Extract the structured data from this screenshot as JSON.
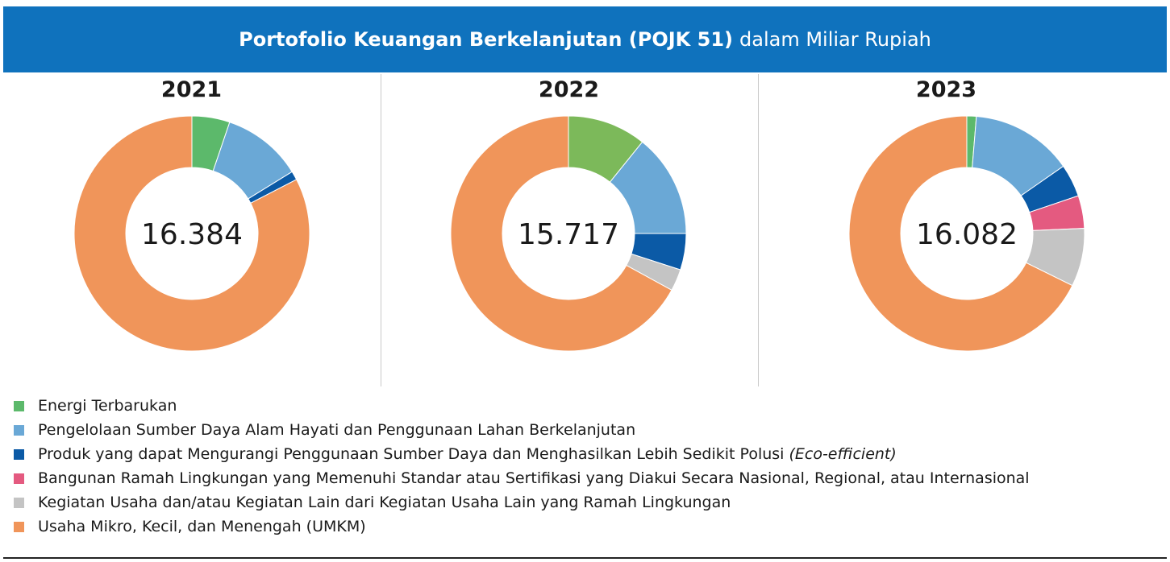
{
  "header": {
    "title_bold": "Portofolio Keuangan Berkelanjutan (POJK 51)",
    "title_normal": "dalam Miliar Rupiah",
    "background_color": "#0f72bd"
  },
  "legend": [
    {
      "label": "Energi Terbarukan",
      "color": "#5cb96b"
    },
    {
      "label": "Pengelolaan Sumber Daya Alam Hayati dan Penggunaan Lahan Berkelanjutan",
      "color": "#6aa8d6"
    },
    {
      "label": "Produk yang dapat Mengurangi Penggunaan Sumber Daya dan Menghasilkan Lebih Sedikit Polusi",
      "label_italic": "(Eco-efficient)",
      "color": "#0b5aa6"
    },
    {
      "label": "Bangunan Ramah Lingkungan yang Memenuhi Standar atau Sertifikasi yang Diakui Secara Nasional, Regional, atau Internasional",
      "color": "#e45a80"
    },
    {
      "label": "Kegiatan Usaha dan/atau Kegiatan Lain dari Kegiatan Usaha Lain yang Ramah Lingkungan",
      "color": "#c4c4c4"
    },
    {
      "label": "Usaha Mikro, Kecil, dan Menengah (UMKM)",
      "color": "#f0955a"
    }
  ],
  "chart_data": [
    {
      "type": "pie",
      "title": "2021",
      "center_label": "16.384",
      "categories": [
        "Energi Terbarukan",
        "Pengelolaan Sumber Daya Alam Hayati dan Penggunaan Lahan Berkelanjutan",
        "Produk yang dapat Mengurangi Penggunaan Sumber Daya dan Menghasilkan Lebih Sedikit Polusi (Eco-efficient)",
        "Bangunan Ramah Lingkungan yang Memenuhi Standar atau Sertifikasi yang Diakui Secara Nasional, Regional, atau Internasional",
        "Kegiatan Usaha dan/atau Kegiatan Lain dari Kegiatan Usaha Lain yang Ramah Lingkungan",
        "Usaha Mikro, Kecil, dan Menengah (UMKM)"
      ],
      "values": [
        5.2,
        11.0,
        1.2,
        0,
        0,
        82.6
      ],
      "colors": [
        "#5cb96b",
        "#6aa8d6",
        "#0b5aa6",
        "#e45a80",
        "#c4c4c4",
        "#f0955a"
      ]
    },
    {
      "type": "pie",
      "title": "2022",
      "center_label": "15.717",
      "categories": [
        "Energi Terbarukan",
        "Pengelolaan Sumber Daya Alam Hayati dan Penggunaan Lahan Berkelanjutan",
        "Produk yang dapat Mengurangi Penggunaan Sumber Daya dan Menghasilkan Lebih Sedikit Polusi (Eco-efficient)",
        "Bangunan Ramah Lingkungan yang Memenuhi Standar atau Sertifikasi yang Diakui Secara Nasional, Regional, atau Internasional",
        "Kegiatan Usaha dan/atau Kegiatan Lain dari Kegiatan Usaha Lain yang Ramah Lingkungan",
        "Usaha Mikro, Kecil, dan Menengah (UMKM)"
      ],
      "values": [
        10.8,
        14.2,
        5.0,
        0,
        3.0,
        67.0
      ],
      "colors": [
        "#7cb95a",
        "#6aa8d6",
        "#0b5aa6",
        "#e45a80",
        "#c4c4c4",
        "#f0955a"
      ]
    },
    {
      "type": "pie",
      "title": "2023",
      "center_label": "16.082",
      "categories": [
        "Energi Terbarukan",
        "Pengelolaan Sumber Daya Alam Hayati dan Penggunaan Lahan Berkelanjutan",
        "Produk yang dapat Mengurangi Penggunaan Sumber Daya dan Menghasilkan Lebih Sedikit Polusi (Eco-efficient)",
        "Bangunan Ramah Lingkungan yang Memenuhi Standar atau Sertifikasi yang Diakui Secara Nasional, Regional, atau Internasional",
        "Kegiatan Usaha dan/atau Kegiatan Lain dari Kegiatan Usaha Lain yang Ramah Lingkungan",
        "Usaha Mikro, Kecil, dan Menengah (UMKM)"
      ],
      "values": [
        1.3,
        14.0,
        4.5,
        4.5,
        8.0,
        67.7
      ],
      "colors": [
        "#5cb96b",
        "#6aa8d6",
        "#0b5aa6",
        "#e45a80",
        "#c4c4c4",
        "#f0955a"
      ]
    }
  ]
}
